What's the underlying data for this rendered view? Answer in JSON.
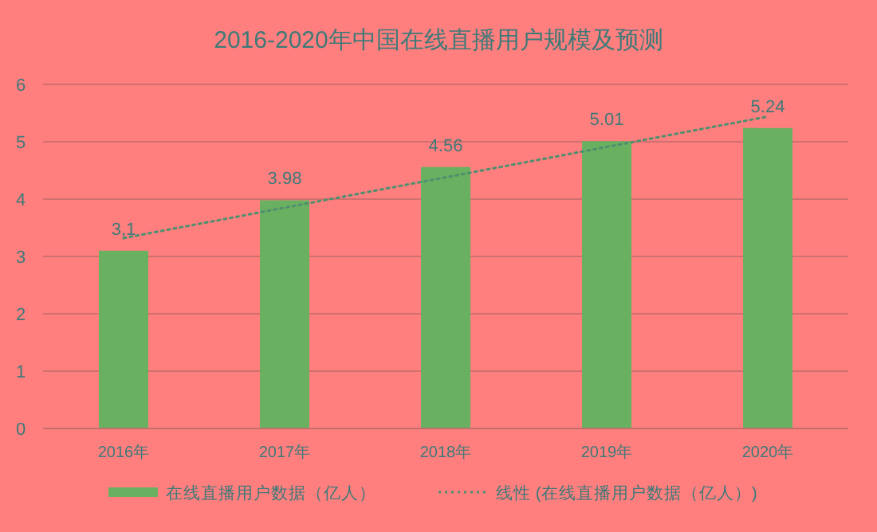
{
  "chart_data": {
    "type": "bar",
    "title": "2016-2020年中国在线直播用户规模及预测",
    "categories": [
      "2016年",
      "2017年",
      "2018年",
      "2019年",
      "2020年"
    ],
    "series": [
      {
        "name": "在线直播用户数据（亿人）",
        "color": "#6ab061",
        "values": [
          3.1,
          3.98,
          4.56,
          5.01,
          5.24
        ],
        "value_labels": [
          "3,1",
          "3.98",
          "4.56",
          "5.01",
          "5.24"
        ]
      },
      {
        "name": "线性 (在线直播用户数据（亿人）)",
        "type": "line",
        "line_style": "dotted",
        "color": "#4f8f6f",
        "values": [
          3.32,
          3.85,
          4.38,
          4.91,
          5.44
        ]
      }
    ],
    "ylim": [
      0,
      6
    ],
    "yticks": [
      0,
      1,
      2,
      3,
      4,
      5,
      6
    ],
    "grid": "y",
    "legend": "bottom"
  }
}
